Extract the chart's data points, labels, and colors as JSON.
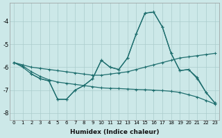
{
  "xlabel": "Humidex (Indice chaleur)",
  "bg_color": "#cce8e8",
  "line_color": "#1e6e6e",
  "grid_color": "#aacccc",
  "xlim": [
    -0.5,
    23.5
  ],
  "ylim": [
    -8.3,
    -3.2
  ],
  "yticks": [
    -8,
    -7,
    -6,
    -5,
    -4
  ],
  "xticks": [
    0,
    1,
    2,
    3,
    4,
    5,
    6,
    7,
    8,
    9,
    10,
    11,
    12,
    13,
    14,
    15,
    16,
    17,
    18,
    19,
    20,
    21,
    22,
    23
  ],
  "line1_x": [
    0,
    1,
    2,
    3,
    4,
    5,
    6,
    7,
    8,
    9,
    10,
    11,
    12,
    13,
    14,
    15,
    16,
    17,
    18,
    19,
    20,
    21,
    22,
    23
  ],
  "line1_y": [
    -5.8,
    -6.0,
    -6.3,
    -6.5,
    -6.6,
    -7.4,
    -7.4,
    -7.0,
    -6.8,
    -6.5,
    -5.7,
    -6.0,
    -6.1,
    -5.6,
    -4.55,
    -3.65,
    -3.6,
    -4.25,
    -5.4,
    -6.15,
    -6.1,
    -6.5,
    -7.1,
    -7.55
  ],
  "line2_x": [
    0,
    1,
    2,
    3,
    4,
    5,
    6,
    7,
    8,
    9,
    10,
    11,
    12,
    13,
    14,
    15,
    16,
    17,
    18,
    19,
    20,
    21,
    22,
    23
  ],
  "line2_y": [
    -5.8,
    -5.9,
    -6.0,
    -6.05,
    -6.1,
    -6.15,
    -6.2,
    -6.25,
    -6.3,
    -6.35,
    -6.35,
    -6.3,
    -6.25,
    -6.2,
    -6.1,
    -6.0,
    -5.9,
    -5.8,
    -5.7,
    -5.6,
    -5.55,
    -5.5,
    -5.45,
    -5.4
  ],
  "line3_x": [
    2,
    3,
    4,
    5,
    6,
    7,
    8,
    9,
    10,
    11,
    12,
    13,
    14,
    15,
    16,
    17,
    18,
    19,
    20,
    21,
    22,
    23
  ],
  "line3_y": [
    -6.3,
    -6.5,
    -6.6,
    -7.4,
    -7.4,
    -7.0,
    -6.8,
    -6.5,
    -5.7,
    -6.0,
    -6.1,
    -5.6,
    -4.55,
    -3.65,
    -3.6,
    -4.25,
    -5.4,
    -6.15,
    -6.1,
    -6.45,
    -7.1,
    -7.55
  ],
  "line4_x": [
    0,
    1,
    2,
    3,
    4,
    5,
    6,
    7,
    8,
    9,
    10,
    11,
    12,
    13,
    14,
    15,
    16,
    17,
    18,
    19,
    20,
    21,
    22,
    23
  ],
  "line4_y": [
    -5.8,
    -5.95,
    -6.2,
    -6.4,
    -6.55,
    -6.65,
    -6.7,
    -6.75,
    -6.8,
    -6.85,
    -6.9,
    -6.92,
    -6.93,
    -6.95,
    -6.97,
    -6.98,
    -7.0,
    -7.02,
    -7.05,
    -7.1,
    -7.2,
    -7.3,
    -7.45,
    -7.6
  ]
}
